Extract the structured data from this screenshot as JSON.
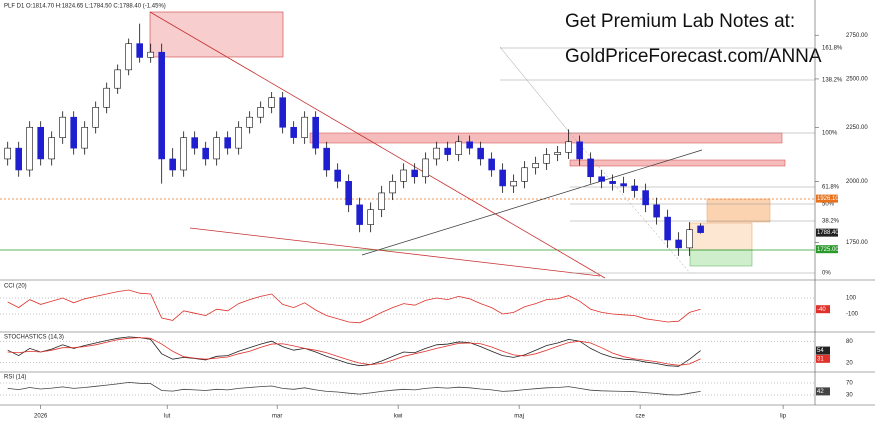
{
  "header": "PLF D1 O:1814.70 H:1824.65 L:1784.50 C:1788.40 (-1.45%)",
  "banner": {
    "line1": "Get Premium Lab Notes at:",
    "line2": "GoldPriceForecast.com/ANNA"
  },
  "fib_labels": [
    "161.8%",
    "138.2%",
    "100%",
    "61.8%",
    "50%",
    "38.2%",
    "0%"
  ],
  "chart_data": [
    {
      "type": "candlestick",
      "log": true,
      "up_color": "#ffffff",
      "down_color": "#1f1fd0",
      "xlim": [
        -0.7,
        73.4
      ],
      "ylim": [
        1620,
        2950
      ],
      "xticks": [
        {
          "value": 3,
          "label": "2026"
        },
        {
          "value": 14.5,
          "label": "lut"
        },
        {
          "value": 24.5,
          "label": "mar"
        },
        {
          "value": 35.5,
          "label": "kwi"
        },
        {
          "value": 46.5,
          "label": "maj"
        },
        {
          "value": 57.5,
          "label": "cze"
        },
        {
          "value": 70.5,
          "label": "lip"
        }
      ],
      "yticks": [
        {
          "value": 1750,
          "label": "1750.00"
        },
        {
          "value": 2000,
          "label": "2000.00"
        },
        {
          "value": 2250,
          "label": "2250.00"
        },
        {
          "value": 2500,
          "label": "2500.00"
        },
        {
          "value": 2750,
          "label": "2750.00"
        }
      ],
      "price_tags": [
        {
          "value": 1926.1,
          "label": "1926.10",
          "color": "#e8711c"
        },
        {
          "value": 1788.4,
          "label": "1788.40",
          "color": "#222222"
        },
        {
          "value": 1725,
          "label": "1725.00",
          "color": "#2a9a2a"
        }
      ],
      "open": [
        2100,
        2150,
        2050,
        2250,
        2100,
        2200,
        2300,
        2150,
        2250,
        2350,
        2450,
        2550,
        2700,
        2620,
        2650,
        2100,
        2050,
        2200,
        2150,
        2100,
        2200,
        2150,
        2250,
        2300,
        2350,
        2400,
        2250,
        2200,
        2300,
        2150,
        2050,
        2000,
        1900,
        1820,
        1880,
        1950,
        2000,
        2050,
        2020,
        2100,
        2150,
        2120,
        2180,
        2150,
        2100,
        2050,
        1980,
        2000,
        2060,
        2080,
        2120,
        2130,
        2180,
        2100,
        2020,
        2000,
        1990,
        1980,
        1960,
        1900,
        1850,
        1760,
        1730,
        1814.7
      ],
      "high": [
        2180,
        2180,
        2280,
        2280,
        2230,
        2330,
        2330,
        2280,
        2380,
        2480,
        2580,
        2730,
        2820,
        2700,
        2700,
        2150,
        2230,
        2230,
        2180,
        2230,
        2230,
        2280,
        2330,
        2380,
        2430,
        2430,
        2280,
        2330,
        2330,
        2180,
        2080,
        2030,
        1930,
        1910,
        1980,
        2030,
        2080,
        2080,
        2130,
        2180,
        2180,
        2210,
        2210,
        2180,
        2130,
        2080,
        2030,
        2090,
        2110,
        2150,
        2160,
        2240,
        2210,
        2130,
        2050,
        2030,
        2020,
        2010,
        1990,
        1930,
        1880,
        1790,
        1830,
        1824.65
      ],
      "low": [
        2070,
        2020,
        2020,
        2070,
        2070,
        2170,
        2120,
        2120,
        2220,
        2320,
        2420,
        2520,
        2590,
        2590,
        1990,
        2020,
        2020,
        2120,
        2070,
        2070,
        2120,
        2120,
        2220,
        2270,
        2320,
        2220,
        2170,
        2170,
        2120,
        2020,
        1970,
        1870,
        1790,
        1790,
        1850,
        1920,
        1970,
        1990,
        1990,
        2070,
        2090,
        2090,
        2120,
        2070,
        2020,
        1950,
        1950,
        1970,
        2030,
        2050,
        2090,
        2100,
        2070,
        1990,
        1970,
        1960,
        1950,
        1930,
        1870,
        1820,
        1730,
        1700,
        1700,
        1784.5
      ],
      "close": [
        2150,
        2050,
        2250,
        2100,
        2200,
        2300,
        2150,
        2250,
        2350,
        2450,
        2550,
        2700,
        2620,
        2650,
        2100,
        2050,
        2200,
        2150,
        2100,
        2200,
        2150,
        2250,
        2300,
        2350,
        2400,
        2250,
        2200,
        2300,
        2150,
        2050,
        2000,
        1900,
        1820,
        1880,
        1950,
        2000,
        2050,
        2020,
        2100,
        2150,
        2120,
        2180,
        2150,
        2100,
        2050,
        1980,
        2000,
        2060,
        2080,
        2120,
        2130,
        2180,
        2100,
        2020,
        2000,
        1990,
        1980,
        1960,
        1900,
        1850,
        1760,
        1730,
        1800,
        1788.4
      ]
    },
    {
      "type": "line",
      "title": "CCI (20)",
      "ylim": [
        -300,
        300
      ],
      "yticks": [
        100,
        -100
      ],
      "series": [
        {
          "color": "#e0312b",
          "values": [
            50,
            -20,
            80,
            20,
            60,
            100,
            40,
            90,
            120,
            150,
            180,
            200,
            160,
            150,
            -150,
            -180,
            -60,
            -90,
            -120,
            -40,
            -60,
            30,
            80,
            120,
            150,
            20,
            -20,
            40,
            -50,
            -120,
            -160,
            -200,
            -210,
            -150,
            -80,
            -20,
            30,
            10,
            70,
            100,
            80,
            120,
            90,
            30,
            -20,
            -100,
            -80,
            -10,
            30,
            80,
            90,
            130,
            60,
            -40,
            -80,
            -100,
            -110,
            -120,
            -160,
            -180,
            -200,
            -190,
            -80,
            -40
          ]
        }
      ]
    },
    {
      "type": "line",
      "title": "STOCHASTICS (14,3)",
      "ylim": [
        0,
        100
      ],
      "yticks": [
        80,
        20
      ],
      "series": [
        {
          "color": "#222222",
          "values": [
            55,
            40,
            60,
            50,
            58,
            70,
            60,
            68,
            75,
            82,
            88,
            92,
            90,
            85,
            45,
            30,
            35,
            32,
            28,
            38,
            40,
            52,
            62,
            72,
            80,
            65,
            55,
            60,
            50,
            38,
            28,
            18,
            12,
            15,
            25,
            38,
            50,
            48,
            60,
            70,
            72,
            78,
            76,
            65,
            52,
            40,
            35,
            42,
            55,
            68,
            75,
            85,
            80,
            60,
            45,
            35,
            30,
            28,
            22,
            18,
            12,
            10,
            30,
            54
          ]
        },
        {
          "color": "#e0312b",
          "values": [
            50,
            48,
            52,
            50,
            55,
            62,
            62,
            65,
            70,
            77,
            84,
            88,
            90,
            88,
            72,
            52,
            37,
            33,
            30,
            33,
            36,
            45,
            52,
            63,
            72,
            73,
            67,
            60,
            55,
            48,
            38,
            28,
            19,
            15,
            18,
            27,
            38,
            45,
            52,
            60,
            67,
            74,
            75,
            73,
            64,
            52,
            42,
            39,
            45,
            55,
            66,
            76,
            80,
            75,
            62,
            47,
            37,
            31,
            27,
            23,
            17,
            13,
            17,
            31
          ]
        }
      ]
    },
    {
      "type": "line",
      "title": "RSI (14)",
      "ylim": [
        0,
        100
      ],
      "yticks": [
        70,
        30
      ],
      "series": [
        {
          "color": "#444444",
          "values": [
            52,
            48,
            55,
            50,
            53,
            57,
            52,
            55,
            59,
            63,
            67,
            72,
            69,
            68,
            45,
            43,
            49,
            47,
            45,
            49,
            47,
            52,
            55,
            58,
            60,
            52,
            49,
            54,
            47,
            42,
            40,
            36,
            33,
            37,
            42,
            46,
            49,
            47,
            52,
            55,
            53,
            56,
            54,
            50,
            47,
            42,
            44,
            48,
            51,
            54,
            55,
            58,
            52,
            46,
            44,
            43,
            42,
            41,
            38,
            35,
            31,
            30,
            36,
            42
          ]
        }
      ]
    }
  ]
}
